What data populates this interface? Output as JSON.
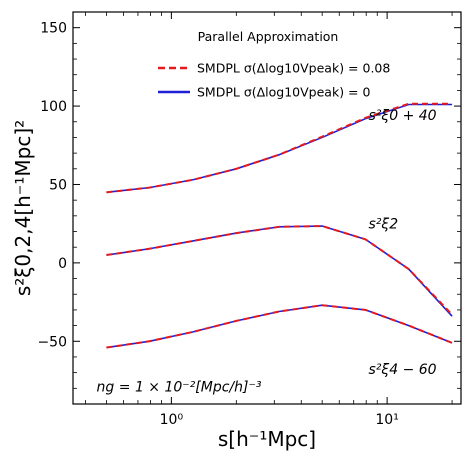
{
  "chart_data": {
    "type": "line",
    "xscale": "log",
    "xlim": [
      0.35,
      22
    ],
    "ylim": [
      -90,
      160
    ],
    "grid": false,
    "xlabel": "s[h⁻¹Mpc]",
    "ylabel": "s²ξ0,2,4[h⁻¹Mpc]²",
    "xtick_labels": [
      "10⁰",
      "10¹"
    ],
    "xticks": [
      1,
      10
    ],
    "yticks": [
      -50,
      0,
      50,
      100,
      150
    ],
    "ytick_labels": [
      "−50",
      "0",
      "50",
      "100",
      "150"
    ],
    "legend": {
      "title": "Parallel Approximation",
      "position": "top-center",
      "entries": [
        {
          "label": "SMDPL σ(Δlog10Vpeak) = 0.08",
          "color": "#e41a1c",
          "dash": "dashed"
        },
        {
          "label": "SMDPL σ(Δlog10Vpeak) = 0",
          "color": "#1f1fd6",
          "dash": "solid"
        }
      ]
    },
    "annotations": [
      {
        "text": "s²ξ0 + 40",
        "anchor": "right",
        "x": 8.2,
        "y": 91
      },
      {
        "text": "s²ξ2",
        "anchor": "right",
        "x": 8.2,
        "y": 22
      },
      {
        "text": "s²ξ4 − 60",
        "anchor": "right",
        "x": 8.2,
        "y": -71
      },
      {
        "text": "ng = 1 × 10⁻²[Mpc/h]⁻³",
        "anchor": "left",
        "x": 0.45,
        "y": -82
      }
    ],
    "x": [
      0.5,
      0.79,
      1.26,
      2.0,
      3.16,
      5.0,
      7.94,
      12.6,
      20.0
    ],
    "series": [
      {
        "group": "xi0_plus_40",
        "color": "#1f1fd6",
        "dash": "solid",
        "values": [
          45,
          48,
          53,
          60,
          69,
          80,
          92,
          101,
          101
        ]
      },
      {
        "group": "xi0_plus_40",
        "color": "#e41a1c",
        "dash": "dashed",
        "values": [
          45,
          48,
          53,
          60,
          69,
          80.5,
          92.5,
          101.5,
          101.5
        ]
      },
      {
        "group": "xi2",
        "color": "#1f1fd6",
        "dash": "solid",
        "values": [
          5,
          9,
          14,
          19,
          23,
          23.5,
          15,
          -4,
          -34
        ]
      },
      {
        "group": "xi2",
        "color": "#e41a1c",
        "dash": "dashed",
        "values": [
          5,
          9,
          14,
          19,
          23,
          23.5,
          15,
          -4,
          -33
        ]
      },
      {
        "group": "xi4_minus_60",
        "color": "#1f1fd6",
        "dash": "solid",
        "values": [
          -54,
          -50,
          -44,
          -37,
          -31,
          -27,
          -30,
          -40,
          -51
        ]
      },
      {
        "group": "xi4_minus_60",
        "color": "#e41a1c",
        "dash": "dashed",
        "values": [
          -54,
          -50,
          -44,
          -37,
          -31,
          -27,
          -30,
          -40,
          -51
        ]
      }
    ]
  }
}
